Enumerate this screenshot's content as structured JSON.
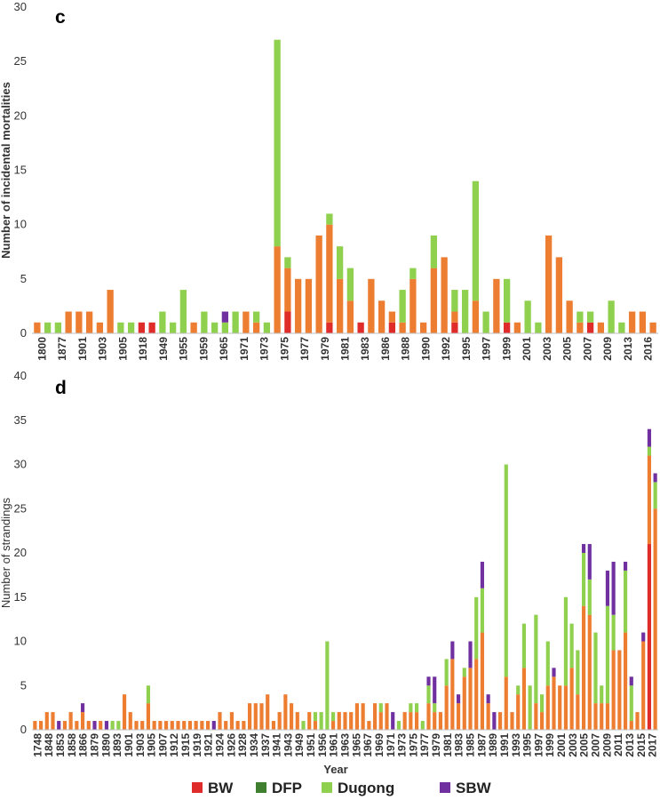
{
  "colors": {
    "BW": "#e02b2b",
    "DFP": "#3f7f2f",
    "Dugong": "#8fd14f",
    "SBW": "#7030a0",
    "Other": "#ed7d31"
  },
  "legend": {
    "position": "bottom",
    "items": [
      "BW",
      "DFP",
      "Dugong",
      "SBW"
    ]
  },
  "chart_data": [
    {
      "type": "bar",
      "panel_label": "c",
      "ylabel": "Number of incidental mortalities",
      "xlabel": "",
      "ylim": [
        0,
        30
      ],
      "yticks": [
        0,
        5,
        10,
        15,
        20,
        25,
        30
      ],
      "tick_labels": [
        "1800",
        "1877",
        "1901",
        "1903",
        "1905",
        "1918",
        "1949",
        "1955",
        "1959",
        "1965",
        "1971",
        "1973",
        "1975",
        "1977",
        "1979",
        "1981",
        "1983",
        "1986",
        "1988",
        "1990",
        "1992",
        "1995",
        "1997",
        "1999",
        "2001",
        "2003",
        "2005",
        "2007",
        "2009",
        "2013",
        "2016"
      ],
      "bars": [
        {
          "orange": 1
        },
        {
          "green": 1
        },
        {
          "green": 1
        },
        {
          "orange": 2
        },
        {
          "orange": 2
        },
        {
          "orange": 2
        },
        {
          "orange": 1
        },
        {
          "orange": 4
        },
        {
          "green": 1
        },
        {
          "green": 1
        },
        {
          "red": 1
        },
        {
          "red": 1
        },
        {
          "green": 2
        },
        {
          "green": 1
        },
        {
          "green": 4
        },
        {
          "orange": 1
        },
        {
          "green": 2
        },
        {
          "green": 1
        },
        {
          "purple": 1,
          "green": 1
        },
        {
          "green": 2
        },
        {
          "orange": 2
        },
        {
          "orange": 1,
          "green": 1
        },
        {
          "green": 1
        },
        {
          "orange": 8,
          "green": 19
        },
        {
          "red": 2,
          "orange": 4,
          "green": 1
        },
        {
          "orange": 5
        },
        {
          "orange": 5
        },
        {
          "orange": 9
        },
        {
          "red": 1,
          "orange": 9,
          "green": 1
        },
        {
          "orange": 5,
          "green": 3
        },
        {
          "orange": 3,
          "green": 3
        },
        {
          "red": 1
        },
        {
          "orange": 5
        },
        {
          "orange": 3
        },
        {
          "red": 1,
          "orange": 1
        },
        {
          "orange": 1,
          "green": 3
        },
        {
          "orange": 5,
          "green": 1
        },
        {
          "orange": 1
        },
        {
          "orange": 6,
          "green": 3
        },
        {
          "orange": 7
        },
        {
          "red": 1,
          "orange": 1,
          "green": 2
        },
        {
          "green": 4
        },
        {
          "orange": 3,
          "green": 11
        },
        {
          "green": 2
        },
        {
          "orange": 5
        },
        {
          "red": 1,
          "green": 4
        },
        {
          "orange": 1
        },
        {
          "green": 3
        },
        {
          "green": 1
        },
        {
          "orange": 9
        },
        {
          "orange": 7
        },
        {
          "orange": 3
        },
        {
          "orange": 1,
          "green": 1
        },
        {
          "red": 1,
          "green": 1
        },
        {
          "orange": 1
        },
        {
          "green": 3
        },
        {
          "green": 1
        },
        {
          "orange": 2
        },
        {
          "orange": 2
        },
        {
          "orange": 1
        }
      ]
    },
    {
      "type": "bar",
      "panel_label": "d",
      "ylabel": "Number of strandings",
      "xlabel": "Year",
      "ylim": [
        0,
        40
      ],
      "yticks": [
        0,
        5,
        10,
        15,
        20,
        25,
        30,
        35,
        40
      ],
      "tick_labels": [
        "1748",
        "1848",
        "1853",
        "1858",
        "1866",
        "1879",
        "1890",
        "1893",
        "1901",
        "1903",
        "1905",
        "1907",
        "1912",
        "1915",
        "1919",
        "1921",
        "1924",
        "1926",
        "1928",
        "1934",
        "1937",
        "1941",
        "1943",
        "1949",
        "1951",
        "1956",
        "1961",
        "1963",
        "1965",
        "1967",
        "1969",
        "1971",
        "1973",
        "1975",
        "1977",
        "1979",
        "1981",
        "1983",
        "1985",
        "1987",
        "1989",
        "1991",
        "1993",
        "1995",
        "1997",
        "1999",
        "2001",
        "2003",
        "2005",
        "2007",
        "2009",
        "2011",
        "2013",
        "2015",
        "2017"
      ],
      "bars": [
        {
          "orange": 1
        },
        {
          "orange": 1
        },
        {
          "orange": 2
        },
        {
          "orange": 2
        },
        {
          "purple": 1
        },
        {
          "orange": 1
        },
        {
          "orange": 2
        },
        {
          "orange": 1
        },
        {
          "orange": 2,
          "purple": 1
        },
        {
          "orange": 1
        },
        {
          "purple": 1
        },
        {
          "orange": 1
        },
        {
          "purple": 1
        },
        {
          "green": 1
        },
        {
          "green": 1
        },
        {
          "orange": 4
        },
        {
          "orange": 2
        },
        {
          "orange": 1
        },
        {
          "orange": 1
        },
        {
          "orange": 3,
          "green": 2
        },
        {
          "orange": 1
        },
        {
          "orange": 1
        },
        {
          "orange": 1
        },
        {
          "orange": 1
        },
        {
          "orange": 1
        },
        {
          "orange": 1
        },
        {
          "orange": 1
        },
        {
          "orange": 1
        },
        {
          "orange": 1
        },
        {
          "orange": 1
        },
        {
          "purple": 1
        },
        {
          "orange": 2
        },
        {
          "orange": 1
        },
        {
          "orange": 2
        },
        {
          "orange": 1
        },
        {
          "orange": 1
        },
        {
          "orange": 3
        },
        {
          "orange": 3
        },
        {
          "orange": 3
        },
        {
          "orange": 4
        },
        {
          "orange": 1
        },
        {
          "orange": 2
        },
        {
          "orange": 4
        },
        {
          "orange": 3
        },
        {
          "orange": 2
        },
        {
          "green": 1
        },
        {
          "orange": 2
        },
        {
          "orange": 1,
          "green": 1
        },
        {
          "green": 2
        },
        {
          "green": 10
        },
        {
          "orange": 1,
          "green": 1
        },
        {
          "orange": 2
        },
        {
          "orange": 2
        },
        {
          "orange": 2
        },
        {
          "orange": 3
        },
        {
          "orange": 3
        },
        {
          "orange": 1
        },
        {
          "orange": 3
        },
        {
          "orange": 2,
          "green": 1
        },
        {
          "orange": 3
        },
        {
          "purple": 2
        },
        {
          "green": 1
        },
        {
          "orange": 2
        },
        {
          "orange": 2,
          "green": 1
        },
        {
          "orange": 2,
          "green": 1
        },
        {
          "green": 1
        },
        {
          "orange": 3,
          "green": 2,
          "purple": 1
        },
        {
          "orange": 2,
          "green": 1,
          "purple": 3
        },
        {
          "orange": 2
        },
        {
          "orange": 5,
          "green": 3
        },
        {
          "orange": 8,
          "purple": 2
        },
        {
          "orange": 3,
          "purple": 1
        },
        {
          "orange": 6,
          "green": 1
        },
        {
          "orange": 7,
          "purple": 3
        },
        {
          "orange": 8,
          "green": 7
        },
        {
          "orange": 11,
          "green": 5,
          "purple": 3
        },
        {
          "orange": 3,
          "purple": 1
        },
        {
          "purple": 2
        },
        {
          "orange": 2
        },
        {
          "orange": 6,
          "green": 24
        },
        {
          "orange": 2
        },
        {
          "orange": 4,
          "green": 1
        },
        {
          "orange": 7,
          "green": 5
        },
        {
          "green": 5
        },
        {
          "orange": 3,
          "green": 10
        },
        {
          "orange": 2,
          "green": 2
        },
        {
          "orange": 5,
          "green": 5
        },
        {
          "orange": 6,
          "purple": 1
        },
        {
          "orange": 5
        },
        {
          "orange": 5,
          "green": 10
        },
        {
          "orange": 7,
          "green": 5
        },
        {
          "orange": 4,
          "green": 5
        },
        {
          "orange": 14,
          "green": 6,
          "purple": 1
        },
        {
          "orange": 13,
          "green": 4,
          "purple": 4
        },
        {
          "orange": 3,
          "green": 8
        },
        {
          "orange": 3,
          "green": 2
        },
        {
          "orange": 3,
          "green": 11,
          "purple": 4
        },
        {
          "orange": 9,
          "green": 4,
          "purple": 6
        },
        {
          "orange": 9
        },
        {
          "orange": 11,
          "green": 7,
          "purple": 1
        },
        {
          "orange": 1,
          "green": 4,
          "purple": 1
        },
        {
          "orange": 2
        },
        {
          "orange": 10,
          "purple": 1
        },
        {
          "red": 21,
          "orange": 10,
          "green": 1,
          "purple": 2
        },
        {
          "orange": 25,
          "green": 3,
          "purple": 1
        }
      ]
    }
  ]
}
